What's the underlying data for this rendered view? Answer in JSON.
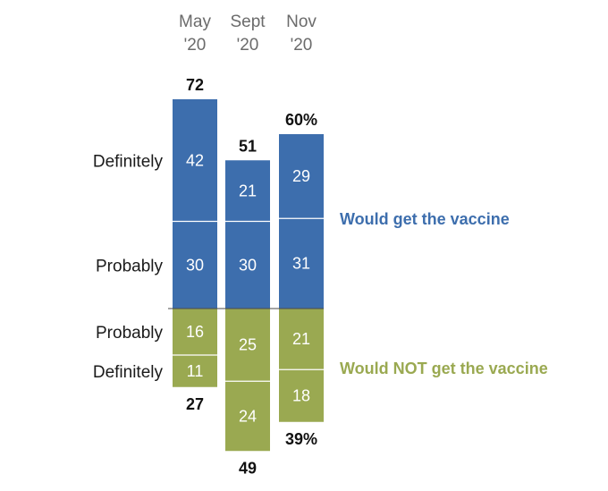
{
  "chart_data": {
    "type": "bar",
    "stacked": "diverging",
    "categories": [
      "May '20",
      "Sept '20",
      "Nov '20"
    ],
    "category_lines": [
      [
        "May",
        "'20"
      ],
      [
        "Sept",
        "'20"
      ],
      [
        "Nov",
        "'20"
      ]
    ],
    "series": [
      {
        "name": "Definitely",
        "group": "would",
        "values": [
          42,
          21,
          29
        ]
      },
      {
        "name": "Probably",
        "group": "would",
        "values": [
          30,
          30,
          31
        ]
      },
      {
        "name": "Probably",
        "group": "would_not",
        "values": [
          16,
          25,
          21
        ]
      },
      {
        "name": "Definitely",
        "group": "would_not",
        "values": [
          11,
          24,
          18
        ]
      }
    ],
    "totals": {
      "would": [
        "72",
        "51",
        "60%"
      ],
      "would_not": [
        "27",
        "49",
        "39%"
      ]
    },
    "row_labels": {
      "would": [
        "Definitely",
        "Probably"
      ],
      "would_not": [
        "Probably",
        "Definitely"
      ]
    },
    "group_labels": {
      "would": "Would get the vaccine",
      "would_not": "Would NOT get the vaccine"
    },
    "colors": {
      "would": "#3d6ead",
      "would_not": "#9aa951",
      "divider": "#ffffff",
      "baseline": "#4a4a4a"
    }
  }
}
